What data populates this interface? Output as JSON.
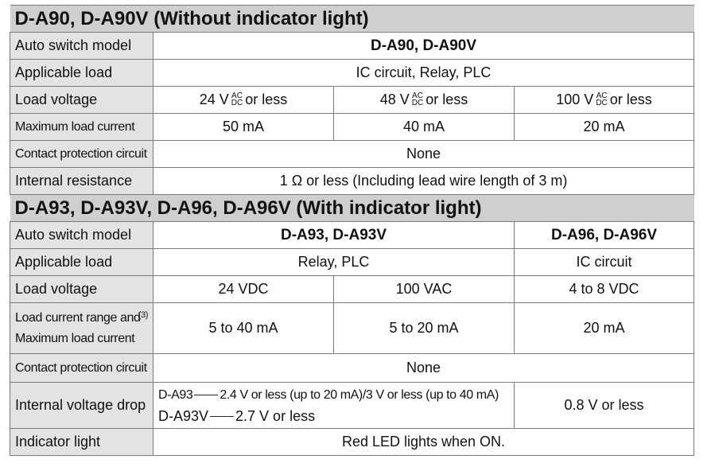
{
  "section1": {
    "title": "D-A90, D-A90V (Without indicator light)",
    "rows": {
      "model": {
        "label": "Auto switch model",
        "value": "D-A90, D-A90V"
      },
      "load": {
        "label": "Applicable load",
        "value": "IC circuit, Relay, PLC"
      },
      "voltage": {
        "label": "Load voltage",
        "v1_num": "24 V",
        "v2_num": "48 V",
        "v3_num": "100 V",
        "ac": "AC",
        "dc": "DC",
        "suffix": "or less"
      },
      "current": {
        "label": "Maximum load current",
        "v1": "50 mA",
        "v2": "40 mA",
        "v3": "20 mA"
      },
      "protection": {
        "label": "Contact protection circuit",
        "value": "None"
      },
      "resistance": {
        "label": "Internal resistance",
        "value": "1 Ω or less (Including lead wire length of 3 m)"
      }
    }
  },
  "section2": {
    "title": "D-A93, D-A93V, D-A96, D-A96V (With indicator light)",
    "rows": {
      "model": {
        "label": "Auto switch model",
        "v1": "D-A93, D-A93V",
        "v2": "D-A96, D-A96V"
      },
      "load": {
        "label": "Applicable load",
        "v1": "Relay, PLC",
        "v2": "IC circuit"
      },
      "voltage": {
        "label": "Load voltage",
        "v1": "24 VDC",
        "v2": "100 VAC",
        "v3": "4 to 8 VDC"
      },
      "current": {
        "label_line1": "Load current range and",
        "label_line2": "Maximum load current",
        "note": "(3)",
        "v1": "5 to 40 mA",
        "v2": "5 to 20 mA",
        "v3": "20 mA"
      },
      "protection": {
        "label": "Contact protection circuit",
        "value": "None"
      },
      "drop": {
        "label": "Internal voltage drop",
        "line1_model": "D-A93",
        "line1_text": "2.4 V or less (up to 20 mA)/3 V or less (up to 40 mA)",
        "line2_model": "D-A93V",
        "line2_text": "2.7 V or less",
        "v2": "0.8 V or less"
      },
      "indicator": {
        "label": "Indicator light",
        "value": "Red LED lights when ON."
      }
    }
  }
}
